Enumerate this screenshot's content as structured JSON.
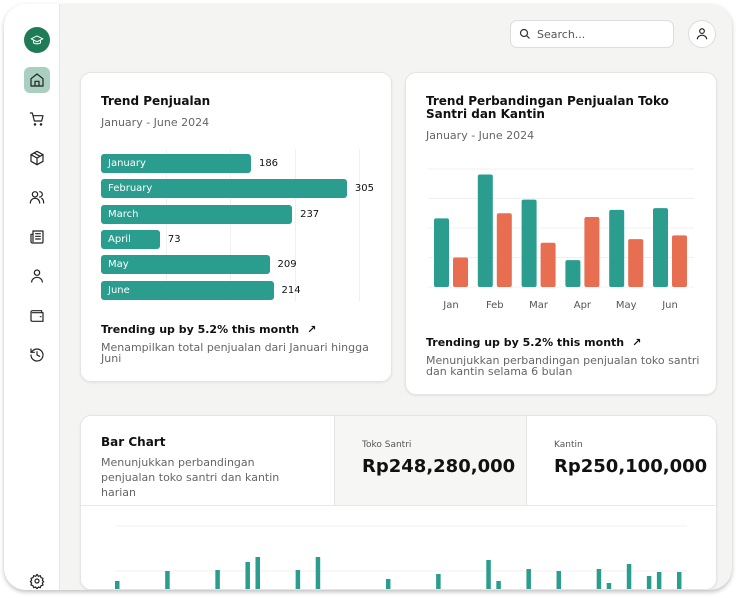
{
  "search": {
    "placeholder": "Search..."
  },
  "sidebar": {
    "items": [
      {
        "icon": "home-icon",
        "active": true
      },
      {
        "icon": "cart-icon"
      },
      {
        "icon": "package-icon"
      },
      {
        "icon": "users-icon"
      },
      {
        "icon": "newspaper-icon"
      },
      {
        "icon": "user-icon"
      },
      {
        "icon": "wallet-icon"
      },
      {
        "icon": "history-icon"
      },
      {
        "icon": "settings-icon"
      }
    ]
  },
  "colors": {
    "teal": "#2a9d8f",
    "orange": "#e76e50",
    "brand": "#1f7a56"
  },
  "card1": {
    "title": "Trend Penjualan",
    "subtitle": "January - June 2024",
    "trend": "Trending up by 5.2% this month",
    "desc": "Menampilkan total penjualan dari Januari hingga Juni"
  },
  "card2": {
    "title": "Trend Perbandingan Penjualan Toko Santri dan Kantin",
    "subtitle": "January - June 2024",
    "trend": "Trending up by 5.2% this month",
    "desc": "Menunjukkan perbandingan penjualan toko santri dan kantin selama 6 bulan"
  },
  "card3": {
    "title": "Bar Chart",
    "desc": "Menunjukkan perbandingan penjualan toko santri dan kantin harian",
    "stats": [
      {
        "label": "Toko Santri",
        "value": "Rp248,280,000"
      },
      {
        "label": "Kantin",
        "value": "Rp250,100,000"
      }
    ]
  },
  "chart_data": [
    {
      "type": "bar",
      "orientation": "horizontal",
      "categories": [
        "January",
        "February",
        "March",
        "April",
        "May",
        "June"
      ],
      "values": [
        186,
        305,
        237,
        73,
        209,
        214
      ],
      "xlim": [
        0,
        320
      ]
    },
    {
      "type": "bar",
      "categories": [
        "Jan",
        "Feb",
        "Mar",
        "Apr",
        "May",
        "Jun"
      ],
      "series": [
        {
          "values": [
            186,
            305,
            237,
            73,
            209,
            214
          ],
          "color": "#2a9d8f"
        },
        {
          "values": [
            80,
            200,
            120,
            190,
            130,
            140
          ],
          "color": "#e76e50"
        }
      ],
      "ylim": [
        0,
        320
      ],
      "grid": true
    },
    {
      "type": "bar",
      "series": [
        {
          "values": [
            80,
            0,
            0,
            0,
            0,
            180,
            0,
            0,
            0,
            0,
            190,
            0,
            0,
            270,
            320,
            0,
            0,
            0,
            190,
            0,
            320,
            0,
            0,
            0,
            0,
            0,
            0,
            100,
            0,
            0,
            0,
            0,
            150,
            0,
            0,
            0,
            0,
            290,
            80,
            0,
            0,
            200,
            0,
            0,
            180,
            0,
            0,
            0,
            200,
            60,
            0,
            250,
            0,
            130,
            170,
            0,
            170
          ],
          "color": "#2a9d8f"
        }
      ],
      "grid": true
    }
  ]
}
